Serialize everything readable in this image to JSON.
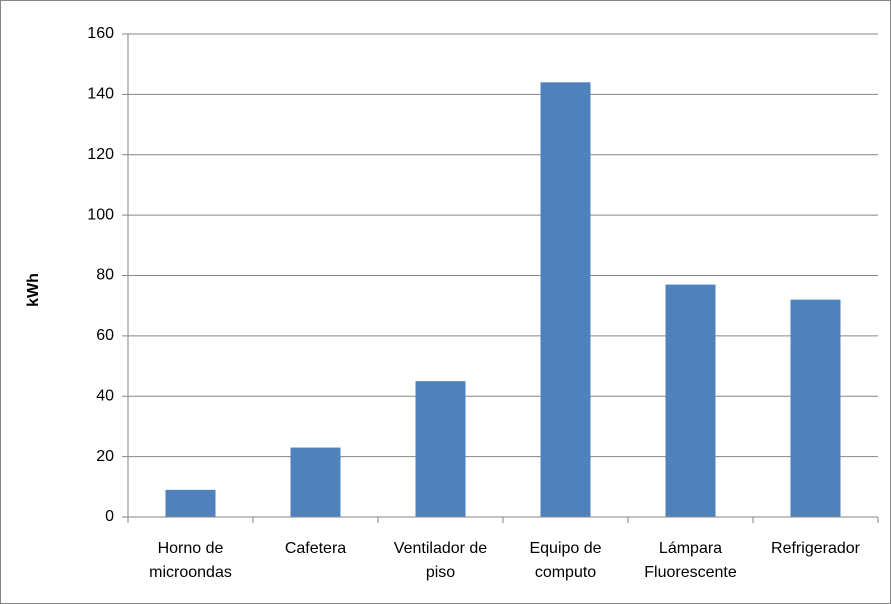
{
  "chart_data": {
    "type": "bar",
    "y_label": "kWh",
    "categories": [
      "Horno de\nmicroondas",
      "Cafetera",
      "Ventilador de\npiso",
      "Equipo de\ncomputo",
      "Lámpara\nFluorescente",
      "Refrigerador"
    ],
    "values": [
      9,
      23,
      45,
      144,
      77,
      72
    ],
    "color": "#4f81bd",
    "ylim": [
      0,
      160
    ],
    "yticks": [
      0,
      20,
      40,
      60,
      80,
      100,
      120,
      140,
      160
    ],
    "grid": true
  }
}
